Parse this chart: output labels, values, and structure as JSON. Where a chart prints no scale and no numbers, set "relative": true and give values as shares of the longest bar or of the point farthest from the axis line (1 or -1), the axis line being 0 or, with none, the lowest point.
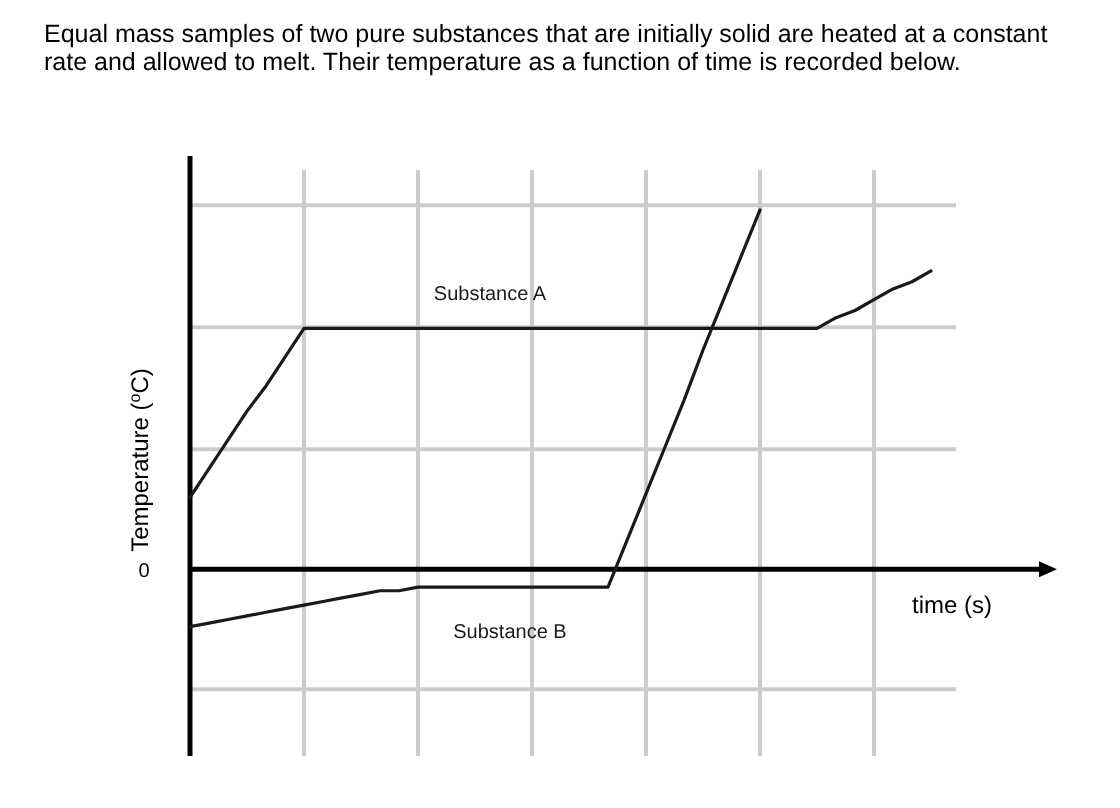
{
  "chart_data": {
    "type": "line",
    "title": "Equal mass samples of two pure substances that are initially solid are heated at a constant rate and allowed to melt. Their temperature as a function of time is recorded below.",
    "xlabel": "time (s)",
    "ylabel": "Temperature ($^{o}$C)",
    "relative": true,
    "grid": true,
    "legend": false,
    "annotations": [
      "0"
    ],
    "categories": [
      null,
      null,
      null,
      null,
      null,
      null,
      null,
      null,
      null,
      null,
      null,
      null,
      null,
      null,
      null,
      null,
      null,
      null,
      null,
      null,
      null,
      null,
      null,
      null,
      null,
      null,
      null,
      null,
      null,
      null,
      null,
      null,
      null,
      null,
      null,
      null,
      null,
      null,
      null,
      null,
      null,
      null,
      null,
      null,
      null,
      null
    ],
    "series": [
      {
        "name": "Substance A",
        "color": "#1a1a1a",
        "values": [
          0.2,
          0.28,
          0.36,
          0.44,
          0.51,
          0.59,
          0.67,
          0.67,
          0.67,
          0.67,
          0.67,
          0.67,
          0.67,
          0.67,
          0.67,
          0.67,
          0.67,
          0.67,
          0.67,
          0.67,
          0.67,
          0.67,
          0.67,
          0.67,
          0.67,
          0.67,
          0.67,
          0.67,
          0.67,
          0.67,
          0.67,
          0.67,
          0.67,
          0.67,
          0.7,
          0.72,
          0.75,
          0.78,
          0.8,
          0.83,
          null,
          null,
          null,
          null,
          null,
          null
        ]
      },
      {
        "name": "Substance B",
        "color": "#1a1a1a",
        "values": [
          -0.16,
          -0.15,
          -0.14,
          -0.13,
          -0.12,
          -0.11,
          -0.1,
          -0.09,
          -0.08,
          -0.07,
          -0.06,
          -0.06,
          -0.05,
          -0.05,
          -0.05,
          -0.05,
          -0.05,
          -0.05,
          -0.05,
          -0.05,
          -0.05,
          -0.05,
          -0.05,
          0.08,
          0.21,
          0.34,
          0.47,
          0.61,
          0.74,
          0.87,
          1,
          null,
          null,
          null,
          null,
          null,
          null,
          null,
          null,
          null,
          null,
          null,
          null,
          null,
          null,
          null
        ]
      }
    ]
  }
}
